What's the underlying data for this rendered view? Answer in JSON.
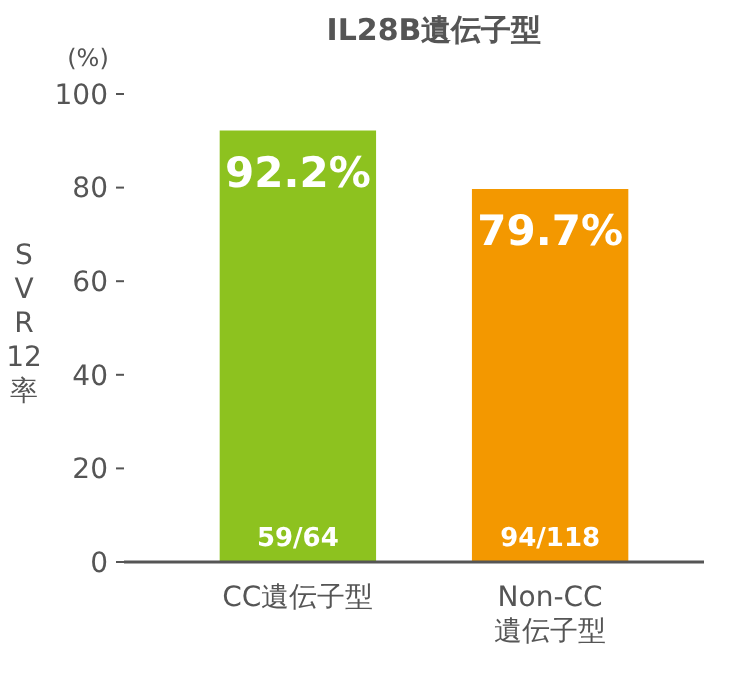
{
  "chart_data": {
    "type": "bar",
    "title": "IL28B遺伝子型",
    "ylabel": "SVR12率",
    "categories": [
      "CC遺伝子型",
      "Non-CC\n遺伝子型"
    ],
    "values": [
      92.2,
      79.7
    ],
    "colors": [
      "#8dc21f",
      "#f39800"
    ],
    "value_labels": [
      "92.2%",
      "79.7%"
    ],
    "ylim": [
      0,
      100
    ],
    "yticks": [
      0,
      20,
      40,
      60,
      80,
      100
    ],
    "annotations": [
      "(%)",
      "59/64",
      "94/118"
    ]
  }
}
